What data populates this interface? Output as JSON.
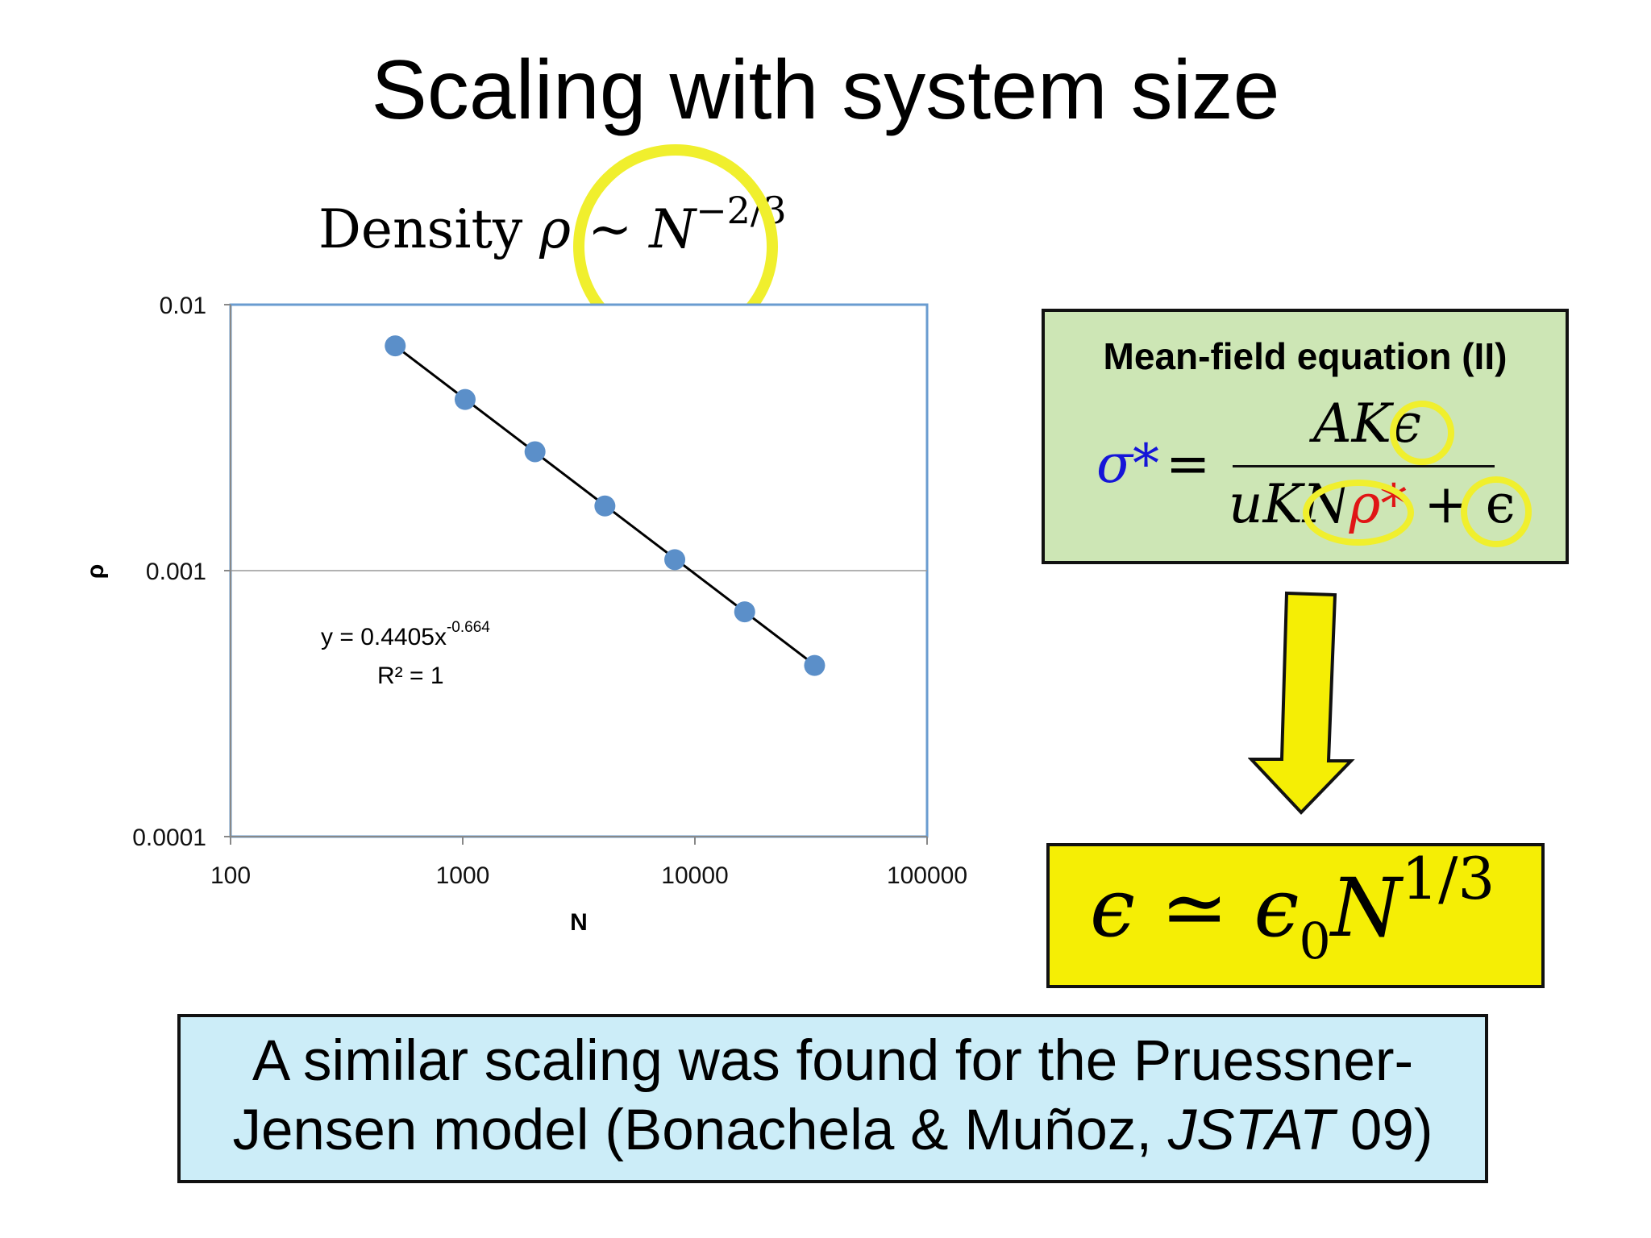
{
  "slide": {
    "title": "Scaling with system size",
    "density_label": {
      "word": "Density",
      "rho": "ρ",
      "sim": "~",
      "N": "N",
      "exponent": "−2/3"
    },
    "highlight_color": "#f0ef2d"
  },
  "mean_field": {
    "title": "Mean-field equation (II)",
    "lhs": "σ*",
    "equals": "=",
    "numerator": "AKϵ",
    "denominator_a": "uKN",
    "denominator_rho": "ρ*",
    "denominator_b": " + ϵ",
    "box_color": "#cde6b5"
  },
  "result": {
    "lhs": "ϵ",
    "op": "≃",
    "eps0": "ϵ",
    "eps0_sub": "0",
    "N": "N",
    "exponent": "1/3",
    "box_color": "#f5ee05"
  },
  "arrow": {
    "color": "#f5ee05"
  },
  "note": {
    "line1": "A similar scaling was found for the Pruessner-",
    "line2_a": "Jensen model (Bonachela & Muñoz, ",
    "line2_journal": "JSTAT",
    "line2_b": " 09)",
    "box_color": "#ccedf8"
  },
  "chart_data": {
    "type": "scatter",
    "xlabel": "N",
    "ylabel": "ρ",
    "x_scale": "log",
    "y_scale": "log",
    "xlim": [
      100,
      100000
    ],
    "ylim": [
      0.0001,
      0.01
    ],
    "x_ticks": [
      "100",
      "1000",
      "10000",
      "100000"
    ],
    "y_ticks": [
      "0.0001",
      "0.001",
      "0.01"
    ],
    "grid": "horizontal",
    "point_color": "#5b8fc9",
    "series": [
      {
        "x": [
          512,
          1024,
          2048,
          4096,
          8192,
          16384,
          32768
        ],
        "y": [
          0.007,
          0.0044,
          0.0028,
          0.00175,
          0.0011,
          0.0007,
          0.00044
        ]
      }
    ],
    "fit": {
      "type": "power",
      "a": 0.4405,
      "b": -0.664
    },
    "fit_equation": "y = 0.4405x",
    "fit_exponent": "-0.664",
    "r_squared": "R² = 1"
  }
}
